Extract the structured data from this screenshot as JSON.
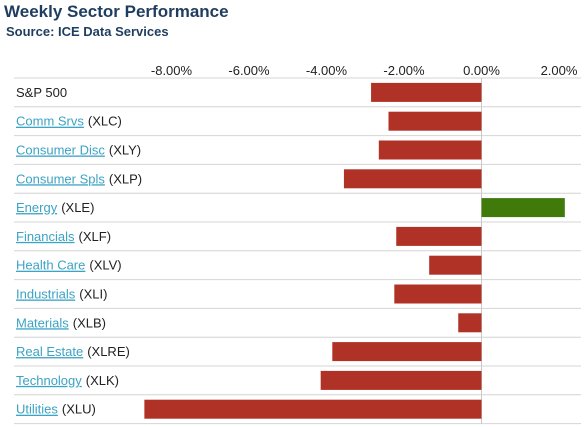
{
  "title": "Weekly Sector Performance",
  "subtitle": "Source: ICE Data Services",
  "colors": {
    "negative": "#b03226",
    "positive": "#3f7a0a",
    "title": "#1f3d5f",
    "link": "#3ba3c4"
  },
  "chart_data": {
    "type": "bar",
    "orientation": "horizontal",
    "xlim": [
      -9.5,
      2.5
    ],
    "ticks": [
      -8,
      -6,
      -4,
      -2,
      0,
      2
    ],
    "tick_labels": [
      "-8.00%",
      "-6.00%",
      "-4.00%",
      "-2.00%",
      "0.00%",
      "2.00%"
    ],
    "grid": "horizontal row separators",
    "rows": [
      {
        "name": "S&P 500",
        "ticker": "",
        "linked": false,
        "value": -2.85
      },
      {
        "name": "Comm Srvs",
        "ticker": "(XLC)",
        "linked": true,
        "value": -2.4
      },
      {
        "name": "Consumer Disc",
        "ticker": "(XLY)",
        "linked": true,
        "value": -2.65
      },
      {
        "name": "Consumer Spls",
        "ticker": "(XLP)",
        "linked": true,
        "value": -3.55
      },
      {
        "name": "Energy",
        "ticker": "(XLE)",
        "linked": true,
        "value": 2.15
      },
      {
        "name": "Financials",
        "ticker": "(XLF)",
        "linked": true,
        "value": -2.2
      },
      {
        "name": "Health Care",
        "ticker": "(XLV)",
        "linked": true,
        "value": -1.35
      },
      {
        "name": "Industrials",
        "ticker": "(XLI)",
        "linked": true,
        "value": -2.25
      },
      {
        "name": "Materials",
        "ticker": "(XLB)",
        "linked": true,
        "value": -0.6
      },
      {
        "name": "Real Estate",
        "ticker": "(XLRE)",
        "linked": true,
        "value": -3.85
      },
      {
        "name": "Technology",
        "ticker": "(XLK)",
        "linked": true,
        "value": -4.15
      },
      {
        "name": "Utilities",
        "ticker": "(XLU)",
        "linked": true,
        "value": -8.7
      }
    ]
  }
}
